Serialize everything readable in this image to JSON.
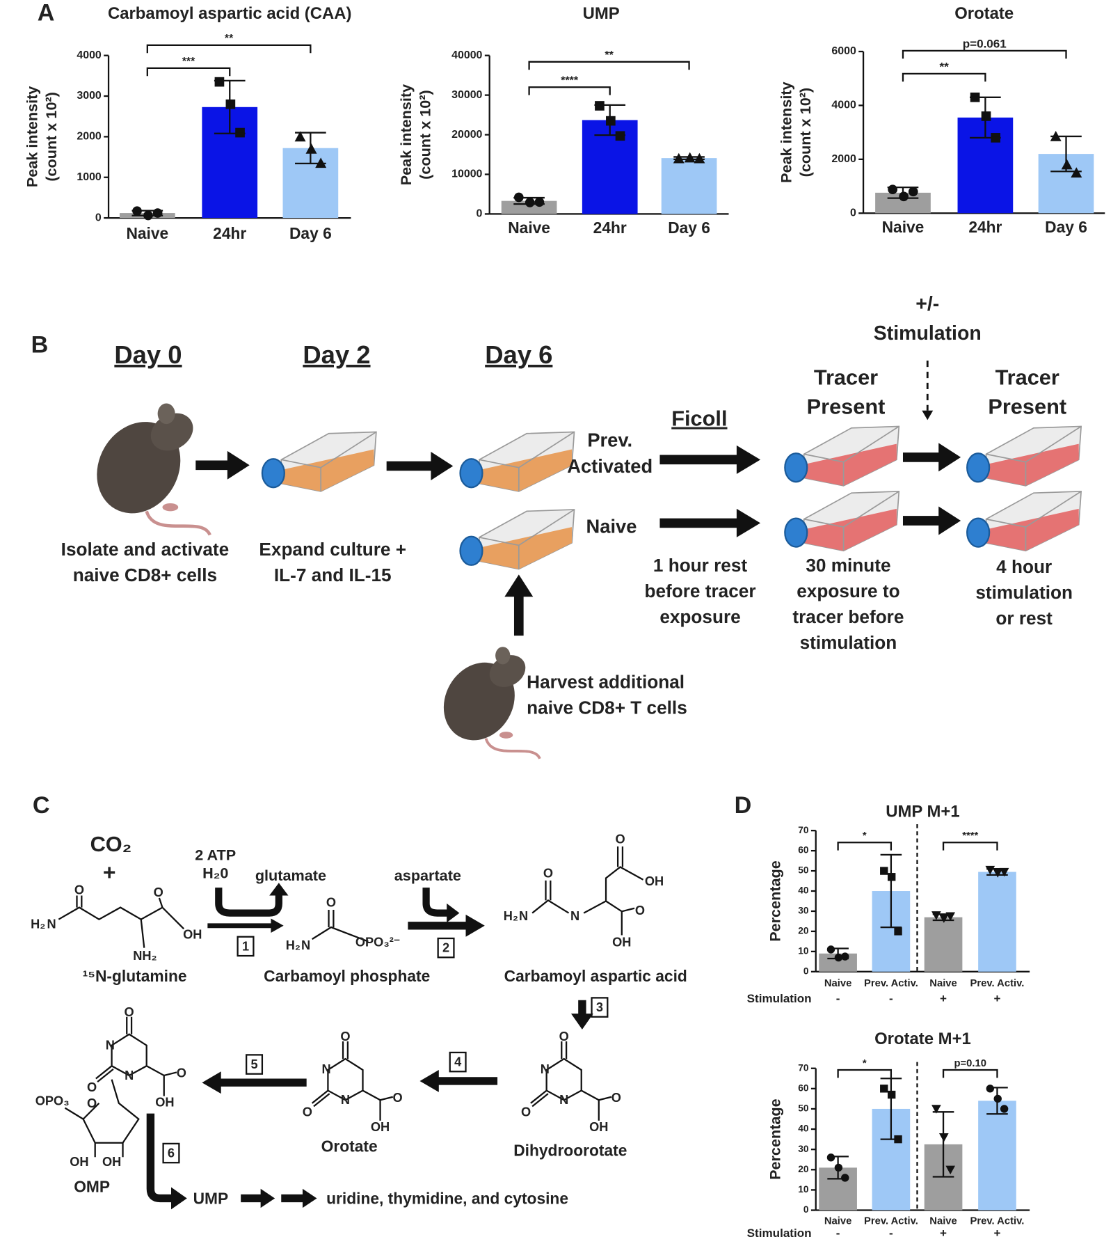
{
  "panel_labels": [
    "A",
    "B",
    "C",
    "D"
  ],
  "chart_data": [
    {
      "type": "bar",
      "title": "Carbamoyl aspartic acid (CAA)",
      "ylabel": [
        "Peak intensity",
        "(count x 10²)"
      ],
      "categories": [
        "Naive",
        "24hr",
        "Day 6"
      ],
      "values": [
        120,
        2730,
        1720
      ],
      "errors": [
        60,
        650,
        380
      ],
      "points": [
        [
          170,
          60,
          120
        ],
        [
          3350,
          2800,
          2100
        ],
        [
          2000,
          1700,
          1350
        ]
      ],
      "markers": [
        "circle",
        "square",
        "triangle"
      ],
      "colors": [
        "#9e9e9e",
        "#0a14e6",
        "#9ec8f6"
      ],
      "ylim": [
        0,
        4000
      ],
      "yticks": [
        0,
        1000,
        2000,
        3000,
        4000
      ],
      "brackets": [
        {
          "from": 0,
          "to": 1,
          "label": "***"
        },
        {
          "from": 0,
          "to": 2,
          "label": "**"
        }
      ]
    },
    {
      "type": "bar",
      "title": "UMP",
      "ylabel": [
        "Peak intensity",
        "(count x 10²)"
      ],
      "categories": [
        "Naive",
        "24hr",
        "Day 6"
      ],
      "values": [
        3300,
        23700,
        14100
      ],
      "errors": [
        800,
        3800,
        300
      ],
      "points": [
        [
          4200,
          2900,
          3000
        ],
        [
          27300,
          23500,
          19700
        ],
        [
          14000,
          14200,
          14000
        ]
      ],
      "markers": [
        "circle",
        "square",
        "triangle"
      ],
      "colors": [
        "#9e9e9e",
        "#0a14e6",
        "#9ec8f6"
      ],
      "ylim": [
        0,
        40000
      ],
      "yticks": [
        0,
        10000,
        20000,
        30000,
        40000
      ],
      "brackets": [
        {
          "from": 0,
          "to": 1,
          "label": "****"
        },
        {
          "from": 0,
          "to": 2,
          "label": "**"
        }
      ]
    },
    {
      "type": "bar",
      "title": "Orotate",
      "ylabel": [
        "Peak intensity",
        "(count x 10²)"
      ],
      "categories": [
        "Naive",
        "24hr",
        "Day 6"
      ],
      "values": [
        760,
        3550,
        2200
      ],
      "errors": [
        200,
        750,
        650
      ],
      "points": [
        [
          880,
          620,
          800
        ],
        [
          4300,
          3600,
          2800
        ],
        [
          2850,
          1800,
          1500
        ]
      ],
      "markers": [
        "circle",
        "square",
        "triangle"
      ],
      "colors": [
        "#9e9e9e",
        "#0a14e6",
        "#9ec8f6"
      ],
      "ylim": [
        0,
        6000
      ],
      "yticks": [
        0,
        2000,
        4000,
        6000
      ],
      "brackets": [
        {
          "from": 0,
          "to": 1,
          "label": "**"
        },
        {
          "from": 0,
          "to": 2,
          "label": "p=0.061"
        }
      ]
    },
    {
      "type": "bar",
      "title": "UMP M+1",
      "ylabel": [
        "Percentage"
      ],
      "categories": [
        "Naive",
        "Prev. Activ.",
        "Naive",
        "Prev. Activ."
      ],
      "values": [
        9,
        40,
        27,
        49.5
      ],
      "errors": [
        2.5,
        18,
        1.5,
        1.5
      ],
      "points": [
        [
          11,
          7,
          7.5
        ],
        [
          50,
          47,
          20
        ],
        [
          28,
          26.5,
          27.5
        ],
        [
          50.5,
          49,
          49.5
        ]
      ],
      "markers": [
        "circle",
        "square",
        "triangle-down",
        "triangle-down"
      ],
      "colors": [
        "#9e9e9e",
        "#9ec8f6",
        "#9e9e9e",
        "#9ec8f6"
      ],
      "ylim": [
        0,
        70
      ],
      "yticks": [
        0,
        10,
        20,
        30,
        40,
        50,
        60,
        70
      ],
      "brackets": [
        {
          "from": 0,
          "to": 1,
          "label": "*"
        },
        {
          "from": 2,
          "to": 3,
          "label": "****"
        }
      ],
      "subrow_label": "Stimulation",
      "subrow": [
        "-",
        "-",
        "+",
        "+"
      ],
      "divider": true
    },
    {
      "type": "bar",
      "title": "Orotate M+1",
      "ylabel": [
        "Percentage"
      ],
      "categories": [
        "Naive",
        "Prev. Activ.",
        "Naive",
        "Prev. Activ."
      ],
      "values": [
        21,
        50,
        32.5,
        54
      ],
      "errors": [
        5.5,
        15,
        16,
        6.5
      ],
      "points": [
        [
          26,
          21,
          16
        ],
        [
          60,
          57,
          35
        ],
        [
          50,
          36,
          20
        ],
        [
          60,
          55,
          50
        ]
      ],
      "markers": [
        "circle",
        "square",
        "triangle-down",
        "circle"
      ],
      "colors": [
        "#9e9e9e",
        "#9ec8f6",
        "#9e9e9e",
        "#9ec8f6"
      ],
      "ylim": [
        0,
        70
      ],
      "yticks": [
        0,
        10,
        20,
        30,
        40,
        50,
        60,
        70
      ],
      "brackets": [
        {
          "from": 0,
          "to": 1,
          "label": "*"
        },
        {
          "from": 2,
          "to": 3,
          "label": "p=0.10"
        }
      ],
      "subrow_label": "Stimulation",
      "subrow": [
        "-",
        "-",
        "+",
        "+"
      ],
      "divider": true
    }
  ],
  "panel_b": {
    "days": [
      "Day 0",
      "Day 2",
      "Day 6"
    ],
    "stim": [
      "+/-",
      "Stimulation"
    ],
    "tracer": [
      [
        "Tracer",
        "Present"
      ],
      [
        "Tracer",
        "Present"
      ]
    ],
    "ficoll": "Ficoll",
    "prev": [
      "Prev.",
      "Activated"
    ],
    "naive": "Naive",
    "captions": [
      [
        "Isolate and activate",
        "naive CD8+ cells"
      ],
      [
        "Expand culture +",
        "IL-7 and IL-15"
      ],
      [
        "1 hour rest",
        "before tracer",
        "exposure"
      ],
      [
        "30 minute",
        "exposure to",
        "tracer before",
        "stimulation"
      ],
      [
        "4 hour",
        "stimulation",
        "or rest"
      ],
      [
        "Harvest additional",
        "naive CD8+ T cells"
      ]
    ]
  },
  "panel_c": {
    "co2": "CO₂",
    "plus": "+",
    "atp": [
      "2 ATP",
      "H₂0"
    ],
    "glutamate": "glutamate",
    "aspartate": "aspartate",
    "names": [
      "¹⁵N-glutamine",
      "Carbamoyl phosphate",
      "Carbamoyl aspartic acid",
      "Dihydroorotate",
      "Orotate",
      "OMP"
    ],
    "steps": [
      "1",
      "2",
      "3",
      "4",
      "5",
      "6"
    ],
    "ump": "UMP",
    "products": "uridine, thymidine, and cytosine",
    "atoms": [
      {
        "text": "O"
      },
      {
        "text": "O"
      },
      {
        "text": "H₂"
      },
      {
        "text": "N",
        "color": "#e02020"
      },
      {
        "text": "OH"
      },
      {
        "text": "NH₂"
      },
      {
        "text": "O"
      },
      {
        "text": "H₂"
      },
      {
        "text": "N",
        "color": "#e02020"
      },
      {
        "text": "OPO₃²⁻"
      },
      {
        "text": "O"
      },
      {
        "text": "OH"
      },
      {
        "text": "O"
      },
      {
        "text": "H₂"
      },
      {
        "text": "N",
        "color": "#e02020"
      },
      {
        "text": "N"
      },
      {
        "text": "O"
      },
      {
        "text": "OH"
      },
      {
        "text": "O"
      },
      {
        "text": "N",
        "color": "#e02020"
      },
      {
        "text": "O"
      },
      {
        "text": "N"
      },
      {
        "text": "O"
      },
      {
        "text": "OH"
      },
      {
        "text": "O"
      },
      {
        "text": "N",
        "color": "#e02020"
      },
      {
        "text": "O"
      },
      {
        "text": "N"
      },
      {
        "text": "O"
      },
      {
        "text": "OH"
      },
      {
        "text": "O"
      },
      {
        "text": "N",
        "color": "#e02020"
      },
      {
        "text": "O"
      },
      {
        "text": "N"
      },
      {
        "text": "O"
      },
      {
        "text": "OH"
      },
      {
        "text": "OPO₃"
      },
      {
        "text": "O"
      },
      {
        "text": "OH"
      },
      {
        "text": "OH"
      }
    ]
  }
}
